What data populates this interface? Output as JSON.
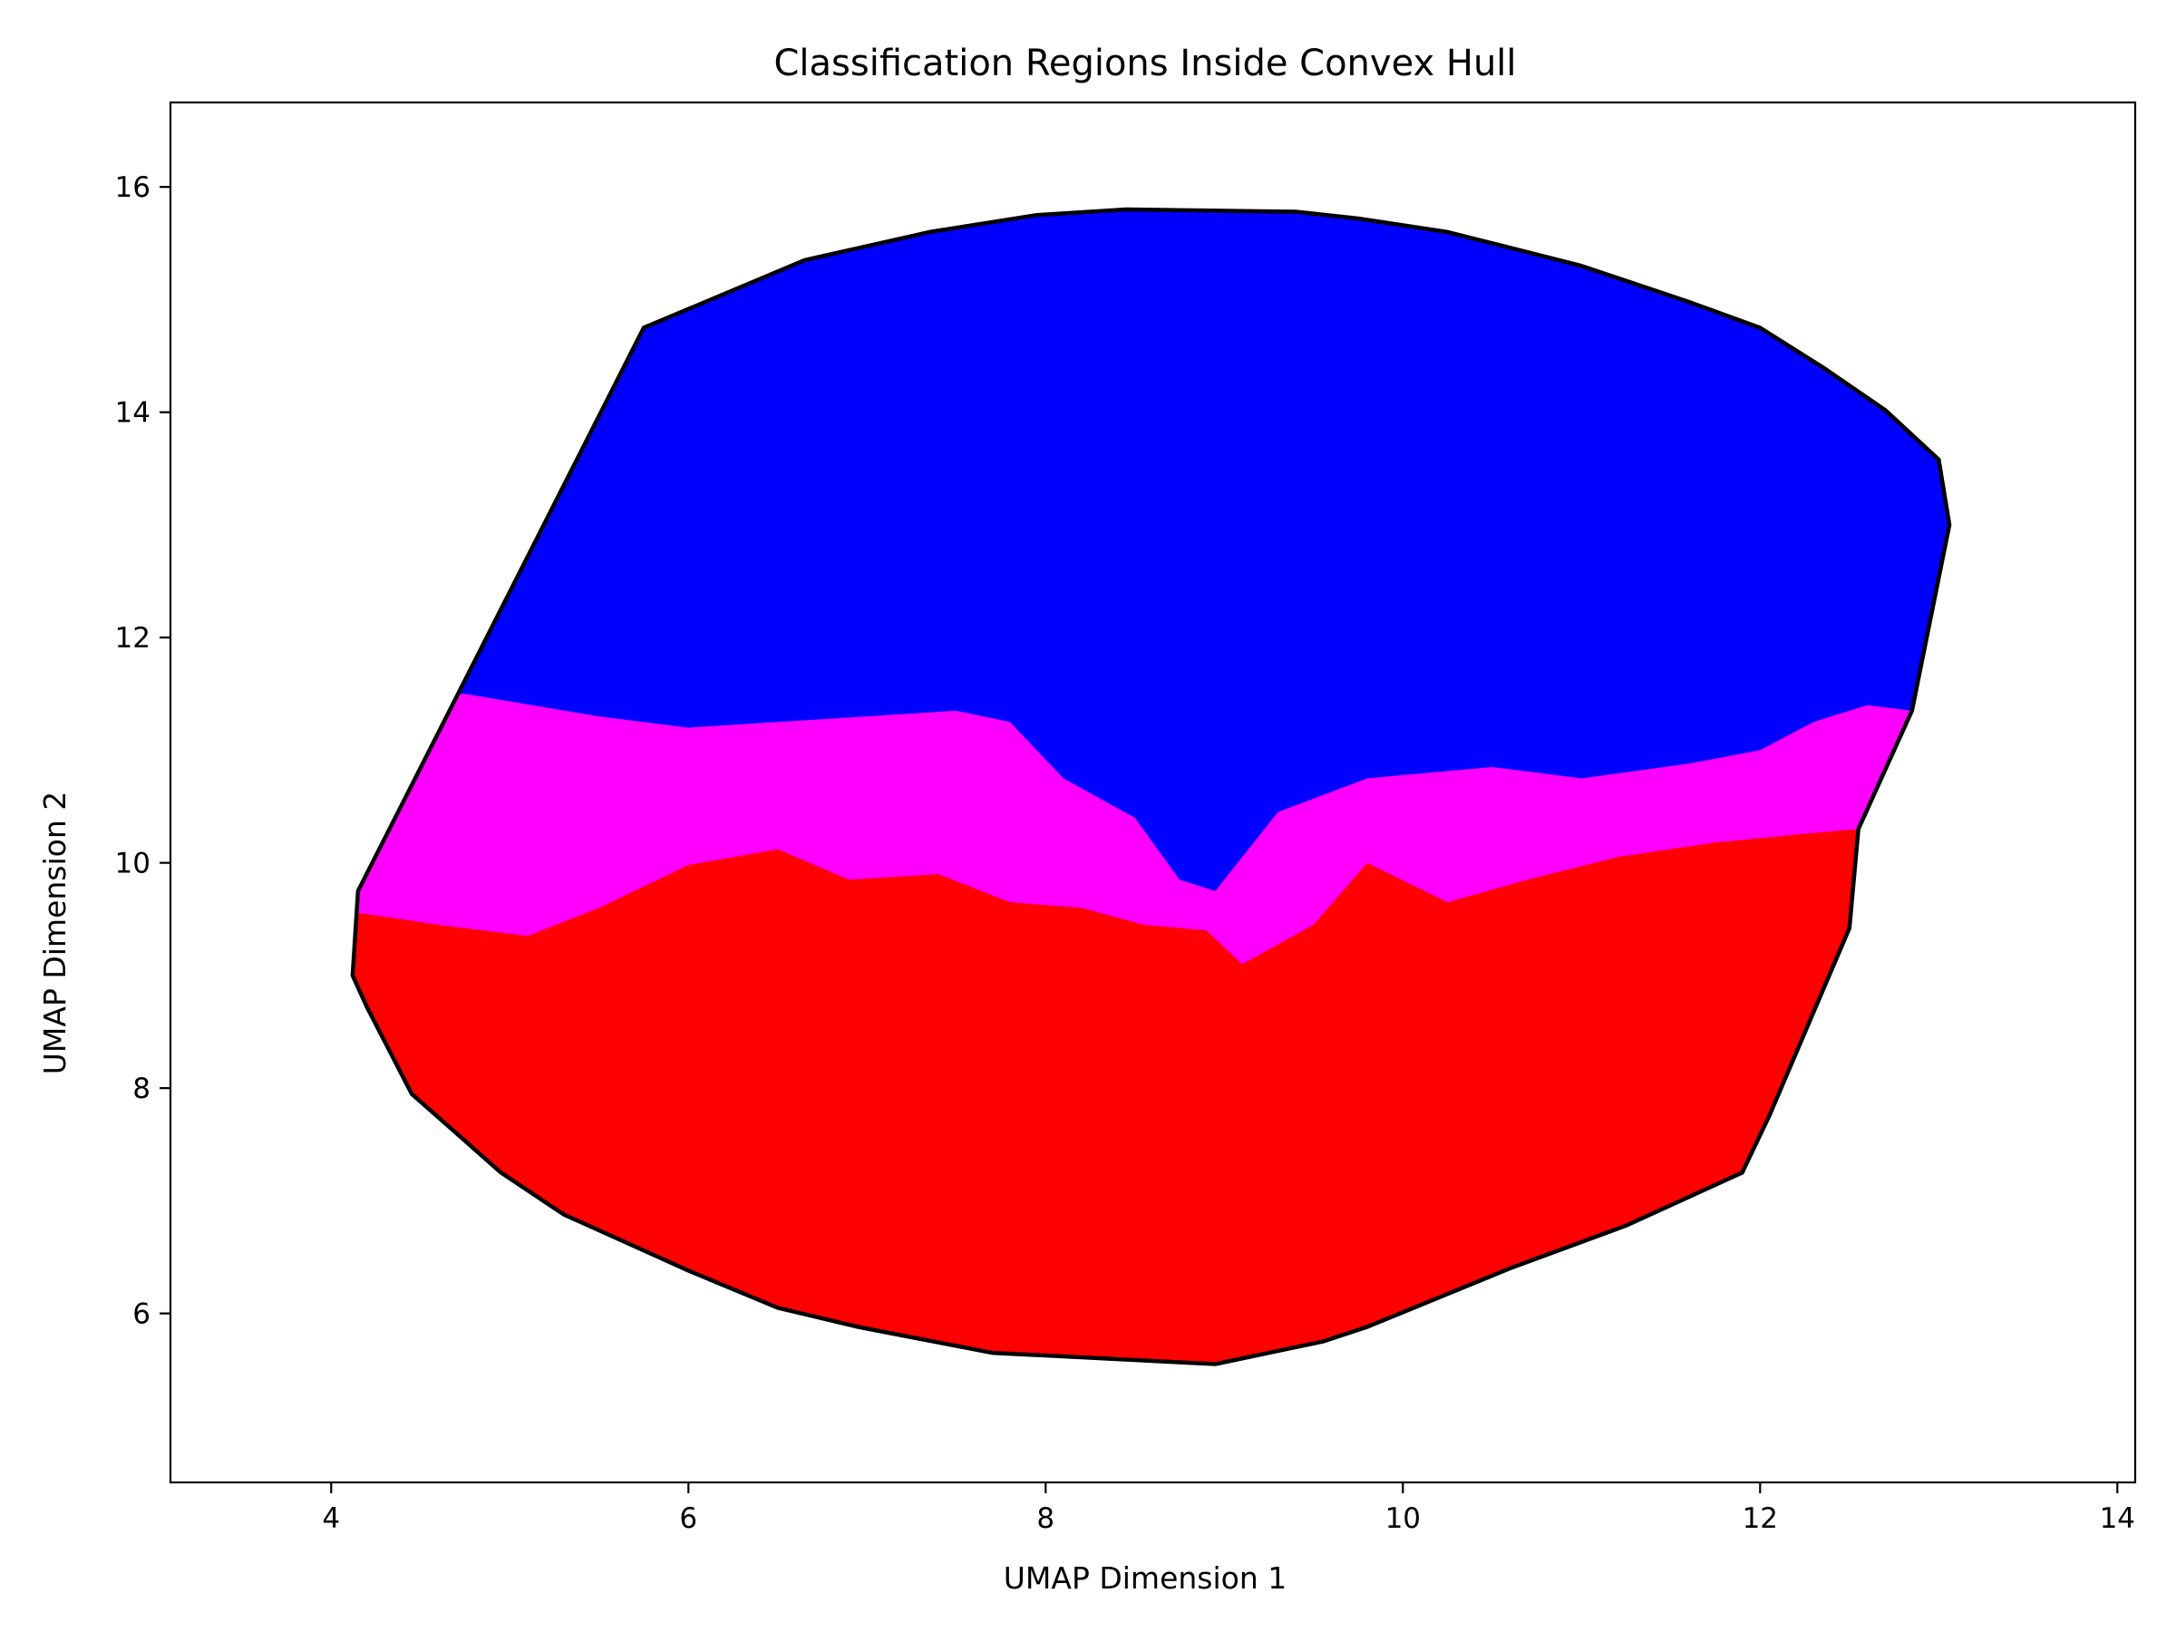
{
  "chart_data": {
    "type": "area",
    "title": "Classification Regions Inside Convex Hull",
    "xlabel": "UMAP Dimension 1",
    "ylabel": "UMAP Dimension 2",
    "xlim": [
      3.1,
      14.1
    ],
    "ylim": [
      4.5,
      16.75
    ],
    "x_ticks": [
      4,
      6,
      8,
      10,
      12,
      14
    ],
    "y_ticks": [
      6,
      8,
      10,
      12,
      14,
      16
    ],
    "grid": false,
    "legend": "none",
    "hull": [
      [
        5.75,
        14.75
      ],
      [
        6.65,
        15.35
      ],
      [
        7.35,
        15.6
      ],
      [
        7.95,
        15.75
      ],
      [
        8.45,
        15.8
      ],
      [
        9.4,
        15.78
      ],
      [
        9.75,
        15.72
      ],
      [
        10.25,
        15.6
      ],
      [
        10.5,
        15.5
      ],
      [
        11.0,
        15.3
      ],
      [
        11.6,
        14.98
      ],
      [
        12.0,
        14.75
      ],
      [
        12.35,
        14.4
      ],
      [
        12.7,
        14.02
      ],
      [
        13.0,
        13.58
      ],
      [
        13.06,
        13.0
      ],
      [
        12.85,
        11.35
      ],
      [
        12.55,
        10.3
      ],
      [
        12.5,
        9.42
      ],
      [
        12.05,
        7.75
      ],
      [
        11.9,
        7.25
      ],
      [
        11.25,
        6.78
      ],
      [
        10.6,
        6.4
      ],
      [
        9.8,
        5.88
      ],
      [
        9.55,
        5.75
      ],
      [
        8.95,
        5.55
      ],
      [
        7.7,
        5.65
      ],
      [
        6.95,
        5.88
      ],
      [
        6.5,
        6.05
      ],
      [
        6.0,
        6.38
      ],
      [
        5.3,
        6.88
      ],
      [
        4.95,
        7.25
      ],
      [
        4.45,
        7.95
      ],
      [
        4.2,
        8.72
      ],
      [
        4.12,
        9.0
      ],
      [
        4.15,
        9.75
      ]
    ],
    "regions": [
      {
        "class": "blue",
        "color": "#0000ff",
        "boundary": [
          [
            4.75,
            11.5
          ],
          [
            5.5,
            11.3
          ],
          [
            6.0,
            11.2
          ],
          [
            6.5,
            11.25
          ],
          [
            7.0,
            11.3
          ],
          [
            7.5,
            11.35
          ],
          [
            7.8,
            11.25
          ],
          [
            8.1,
            10.75
          ],
          [
            8.5,
            10.4
          ],
          [
            8.75,
            9.85
          ],
          [
            8.95,
            9.75
          ],
          [
            9.3,
            10.45
          ],
          [
            9.8,
            10.75
          ],
          [
            10.5,
            10.85
          ],
          [
            11.0,
            10.75
          ],
          [
            11.6,
            10.88
          ],
          [
            12.0,
            11.0
          ],
          [
            12.3,
            11.25
          ],
          [
            12.6,
            11.4
          ],
          [
            12.85,
            11.35
          ]
        ]
      },
      {
        "class": "magenta",
        "color": "#ff00ff",
        "boundary": [
          [
            4.18,
            9.55
          ],
          [
            4.6,
            9.45
          ],
          [
            5.1,
            9.35
          ],
          [
            5.5,
            9.6
          ],
          [
            6.0,
            9.98
          ],
          [
            6.5,
            10.12
          ],
          [
            6.9,
            9.85
          ],
          [
            7.4,
            9.9
          ],
          [
            7.8,
            9.65
          ],
          [
            8.2,
            9.6
          ],
          [
            8.55,
            9.45
          ],
          [
            8.9,
            9.4
          ],
          [
            9.1,
            9.1
          ],
          [
            9.5,
            9.45
          ],
          [
            9.8,
            10.0
          ],
          [
            10.25,
            9.65
          ],
          [
            10.7,
            9.85
          ],
          [
            11.2,
            10.05
          ],
          [
            11.75,
            10.18
          ],
          [
            12.2,
            10.25
          ],
          [
            12.55,
            10.3
          ]
        ]
      },
      {
        "class": "red",
        "color": "#ff0000"
      }
    ]
  }
}
